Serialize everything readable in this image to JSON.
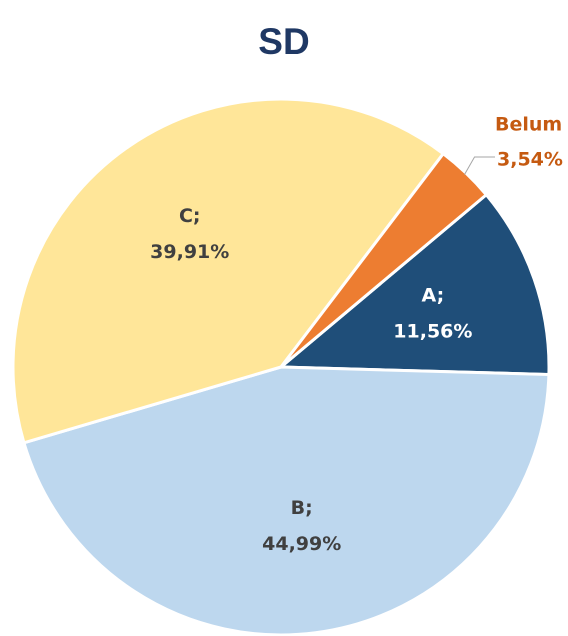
{
  "chart_data": {
    "type": "pie",
    "title": "SD",
    "categories": [
      "A;",
      "B;",
      "C;",
      "Belum"
    ],
    "values": [
      11.56,
      44.99,
      39.91,
      3.54
    ],
    "value_labels": [
      "11,56%",
      "44,99%",
      "39,91%",
      "3,54%"
    ],
    "colors": [
      "#1f4e79",
      "#bdd7ee",
      "#ffe699",
      "#ed7d31"
    ],
    "start_angle": 50
  }
}
